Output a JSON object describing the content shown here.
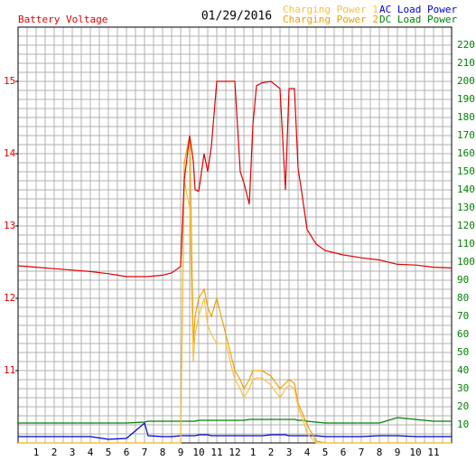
{
  "chart_data": {
    "type": "line",
    "title": "01/29/2016",
    "x": [
      0,
      1,
      2,
      3,
      4,
      5,
      6,
      7,
      7.2,
      8,
      8.5,
      9,
      9.2,
      9.5,
      9.7,
      9.8,
      10,
      10.3,
      10.5,
      10.7,
      11,
      11.5,
      12,
      12.3,
      12.5,
      12.8,
      13,
      13.2,
      13.5,
      14,
      14.5,
      14.8,
      15,
      15.3,
      15.5,
      15.8,
      16,
      16.5,
      17,
      18,
      19,
      20,
      21,
      22,
      23,
      24
    ],
    "xlim": [
      0,
      24
    ],
    "xticks": [
      1,
      2,
      3,
      4,
      5,
      6,
      7,
      8,
      9,
      10,
      11,
      12,
      {
        "value": 13,
        "label": "1"
      },
      {
        "value": 14,
        "label": "2"
      },
      {
        "value": 15,
        "label": "3"
      },
      {
        "value": 16,
        "label": "4"
      },
      {
        "value": 17,
        "label": "5"
      },
      {
        "value": 18,
        "label": "6"
      },
      {
        "value": 19,
        "label": "7"
      },
      {
        "value": 20,
        "label": "8"
      },
      {
        "value": 21,
        "label": "9"
      },
      {
        "value": 22,
        "label": "10"
      },
      {
        "value": 23,
        "label": "11"
      }
    ],
    "ylim": [
      10,
      15.75
    ],
    "yticks": [
      11,
      12,
      13,
      14,
      15
    ],
    "y2lim": [
      0,
      230
    ],
    "y2ticks": [
      10,
      20,
      30,
      40,
      50,
      60,
      70,
      80,
      90,
      100,
      110,
      120,
      130,
      140,
      150,
      160,
      170,
      180,
      190,
      200,
      210,
      220
    ],
    "grid": true,
    "series": [
      {
        "name": "Battery Voltage",
        "color": "#e00000",
        "values": [
          12.45,
          12.43,
          12.41,
          12.39,
          12.37,
          12.34,
          12.3,
          12.3,
          12.3,
          12.32,
          12.35,
          12.44,
          13.63,
          14.25,
          13.9,
          13.5,
          13.48,
          14.0,
          13.75,
          14.1,
          15.0,
          15.0,
          15.0,
          13.75,
          13.6,
          13.3,
          14.4,
          14.94,
          14.98,
          15.0,
          14.9,
          13.5,
          14.9,
          14.9,
          13.8,
          13.3,
          12.95,
          12.75,
          12.66,
          12.6,
          12.56,
          12.53,
          12.47,
          12.46,
          12.43,
          12.42
        ]
      },
      {
        "name": "Charging Power 1",
        "color": "#f8c040",
        "axis": "y2",
        "values": [
          0,
          0,
          0,
          0,
          0,
          0,
          0,
          0,
          0,
          0,
          0,
          0,
          145,
          130,
          45,
          60,
          70,
          80,
          65,
          60,
          55,
          55,
          35,
          30,
          25,
          30,
          35,
          36,
          36,
          32,
          25,
          30,
          32,
          30,
          20,
          12,
          5,
          0,
          0,
          0,
          0,
          0,
          0,
          0,
          0,
          0
        ]
      },
      {
        "name": "Charging Power 2",
        "color": "#f0a000",
        "axis": "y2",
        "values": [
          0,
          0,
          0,
          0,
          0,
          0,
          0,
          0,
          0,
          0,
          0,
          0,
          155,
          170,
          55,
          70,
          80,
          85,
          75,
          70,
          80,
          60,
          40,
          35,
          30,
          35,
          40,
          40,
          40,
          37,
          30,
          33,
          35,
          33,
          22,
          15,
          10,
          1,
          0,
          0,
          0,
          0,
          0,
          0,
          0,
          0
        ]
      },
      {
        "name": "AC Load Power",
        "color": "#0000d0",
        "axis": "y2",
        "values": [
          3.5,
          3.5,
          3.5,
          3.5,
          3.5,
          2,
          2.5,
          11,
          4,
          3.5,
          3.5,
          4,
          4,
          4,
          4,
          4,
          4.5,
          4.5,
          4.5,
          4,
          4,
          4,
          4,
          4,
          4,
          4,
          4,
          4,
          4,
          4.5,
          4.5,
          4.5,
          4,
          4,
          4,
          4,
          4,
          4,
          3.5,
          3.5,
          3.5,
          4,
          4,
          3.5,
          3.5,
          3.5
        ]
      },
      {
        "name": "DC Load Power",
        "color": "#008000",
        "axis": "y2",
        "values": [
          11,
          11,
          11,
          11,
          11,
          11,
          11,
          11.5,
          12,
          12,
          12,
          12,
          12,
          12,
          12,
          12,
          12.5,
          12.5,
          12.5,
          12.5,
          12.5,
          12.5,
          12.5,
          12.5,
          12.5,
          13,
          13,
          13,
          13,
          13,
          13,
          13,
          13,
          13,
          12.5,
          12.5,
          12,
          11.5,
          11,
          11,
          11,
          11,
          14,
          13,
          12,
          12
        ]
      }
    ]
  }
}
